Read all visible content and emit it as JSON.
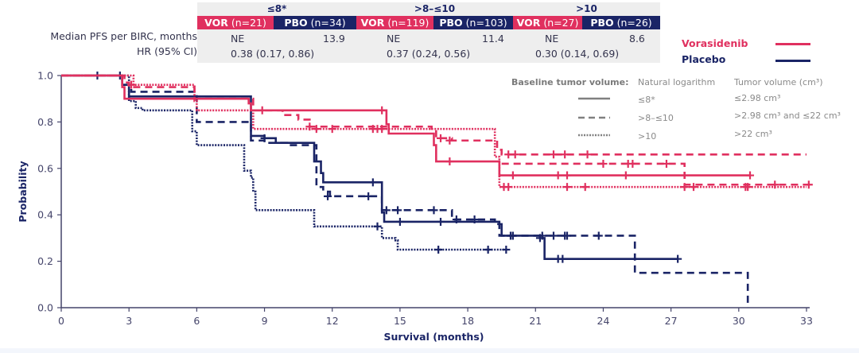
{
  "colors": {
    "vorasidenib": "#e0305f",
    "placebo": "#1a2466",
    "axis": "#44446a"
  },
  "table": {
    "row_labels": [
      "Median PFS per BIRC, months",
      "HR (95% CI)"
    ],
    "groups": [
      {
        "header": "≤8*",
        "vor_label": "VOR",
        "vor_n": "(n=21)",
        "pbo_label": "PBO",
        "pbo_n": "(n=34)",
        "vor_median": "NE",
        "pbo_median": "13.9",
        "hr": "0.38 (0.17, 0.86)"
      },
      {
        "header": ">8–≤10",
        "vor_label": "VOR",
        "vor_n": "(n=119)",
        "pbo_label": "PBO",
        "pbo_n": "(n=103)",
        "vor_median": "NE",
        "pbo_median": "11.4",
        "hr": "0.37 (0.24, 0.56)"
      },
      {
        "header": ">10",
        "vor_label": "VOR",
        "vor_n": "(n=27)",
        "pbo_label": "PBO",
        "pbo_n": "(n=26)",
        "vor_median": "NE",
        "pbo_median": "8.6",
        "hr": "0.30 (0.14, 0.69)"
      }
    ]
  },
  "legend": {
    "vorasidenib": "Vorasidenib",
    "placebo": "Placebo"
  },
  "volume_legend": {
    "title": "Baseline tumor volume:",
    "col1": "Natural logarithm",
    "col2": "Tumor volume (cm³)",
    "rows": [
      {
        "style": "solid",
        "log": "≤8*",
        "volume": "≤2.98 cm³"
      },
      {
        "style": "dashed",
        "log": ">8–≤10",
        "volume": ">2.98 cm³ and ≤22 cm³"
      },
      {
        "style": "dotted",
        "log": ">10",
        "volume": ">22 cm³"
      }
    ]
  },
  "chart_data": {
    "type": "line",
    "subtype": "kaplan-meier step",
    "xlabel": "Survival (months)",
    "ylabel": "Probability",
    "xlim": [
      0,
      33
    ],
    "ylim": [
      0,
      1.0
    ],
    "xticks": [
      "0",
      "3",
      "6",
      "9",
      "12",
      "15",
      "18",
      "21",
      "24",
      "27",
      "30",
      "33"
    ],
    "yticks": [
      "0.0",
      "0.2",
      "0.4",
      "0.6",
      "0.8",
      "1.0"
    ],
    "grid": false,
    "legend_position": "top-right",
    "series": [
      {
        "name": "Vorasidenib ≤8*",
        "arm": "vorasidenib",
        "style": "solid",
        "steps": [
          [
            0,
            1.0
          ],
          [
            2.7,
            0.95
          ],
          [
            2.8,
            0.9
          ],
          [
            5.6,
            0.9
          ],
          [
            8.2,
            0.9
          ],
          [
            8.3,
            0.88
          ],
          [
            8.4,
            0.85
          ],
          [
            14.3,
            0.85
          ],
          [
            14.4,
            0.79
          ],
          [
            14.5,
            0.75
          ],
          [
            16.4,
            0.75
          ],
          [
            16.5,
            0.7
          ],
          [
            16.6,
            0.63
          ],
          [
            19.3,
            0.63
          ],
          [
            19.4,
            0.57
          ],
          [
            27.5,
            0.57
          ],
          [
            30.5,
            0.57
          ]
        ],
        "censors": [
          [
            14.2,
            0.85
          ],
          [
            17.2,
            0.63
          ],
          [
            20.0,
            0.57
          ],
          [
            22.0,
            0.57
          ],
          [
            22.4,
            0.57
          ],
          [
            25.0,
            0.57
          ],
          [
            30.5,
            0.57
          ]
        ]
      },
      {
        "name": "Vorasidenib >8–≤10",
        "arm": "vorasidenib",
        "style": "dashed",
        "steps": [
          [
            0,
            1.0
          ],
          [
            2.8,
            0.97
          ],
          [
            3.0,
            0.95
          ],
          [
            5.8,
            0.95
          ],
          [
            5.9,
            0.9
          ],
          [
            8.3,
            0.9
          ],
          [
            8.5,
            0.85
          ],
          [
            9.3,
            0.85
          ],
          [
            9.8,
            0.83
          ],
          [
            10.5,
            0.81
          ],
          [
            11.0,
            0.78
          ],
          [
            16.4,
            0.76
          ],
          [
            16.6,
            0.73
          ],
          [
            17.3,
            0.72
          ],
          [
            19.3,
            0.68
          ],
          [
            19.5,
            0.66
          ],
          [
            33.0,
            0.66
          ]
        ],
        "censors": [
          [
            3.1,
            0.96
          ],
          [
            8.9,
            0.85
          ],
          [
            11.0,
            0.78
          ],
          [
            11.3,
            0.77
          ],
          [
            12.0,
            0.77
          ],
          [
            16.8,
            0.73
          ],
          [
            17.2,
            0.72
          ],
          [
            19.8,
            0.66
          ],
          [
            20.1,
            0.66
          ],
          [
            21.8,
            0.66
          ],
          [
            22.3,
            0.66
          ],
          [
            23.3,
            0.66
          ],
          [
            24.0,
            0.62
          ],
          [
            25.1,
            0.62
          ],
          [
            25.3,
            0.62
          ],
          [
            26.8,
            0.62
          ],
          [
            31.6,
            0.53
          ],
          [
            33.1,
            0.53
          ]
        ],
        "tail": [
          [
            19.5,
            0.62
          ],
          [
            27.6,
            0.62
          ],
          [
            27.6,
            0.53
          ],
          [
            33.2,
            0.53
          ]
        ]
      },
      {
        "name": "Vorasidenib >10",
        "arm": "vorasidenib",
        "style": "dotted",
        "steps": [
          [
            0,
            1.0
          ],
          [
            3.1,
            1.0
          ],
          [
            3.2,
            0.96
          ],
          [
            5.8,
            0.96
          ],
          [
            5.9,
            0.89
          ],
          [
            6.0,
            0.85
          ],
          [
            8.4,
            0.85
          ],
          [
            8.5,
            0.77
          ],
          [
            14.3,
            0.77
          ],
          [
            14.4,
            0.77
          ],
          [
            19.2,
            0.65
          ],
          [
            19.4,
            0.52
          ],
          [
            33.0,
            0.52
          ]
        ],
        "censors": [
          [
            13.8,
            0.77
          ],
          [
            14.0,
            0.77
          ],
          [
            14.2,
            0.77
          ],
          [
            19.6,
            0.52
          ],
          [
            19.8,
            0.52
          ],
          [
            22.4,
            0.52
          ],
          [
            23.2,
            0.52
          ],
          [
            27.6,
            0.52
          ],
          [
            28.0,
            0.52
          ],
          [
            30.3,
            0.52
          ],
          [
            30.4,
            0.52
          ]
        ]
      },
      {
        "name": "Placebo ≤8*",
        "arm": "placebo",
        "style": "solid",
        "steps": [
          [
            0,
            1.0
          ],
          [
            2.6,
            1.0
          ],
          [
            2.7,
            0.96
          ],
          [
            3.0,
            0.91
          ],
          [
            8.2,
            0.91
          ],
          [
            8.4,
            0.74
          ],
          [
            9.0,
            0.73
          ],
          [
            9.5,
            0.71
          ],
          [
            11.0,
            0.71
          ],
          [
            11.2,
            0.63
          ],
          [
            11.5,
            0.58
          ],
          [
            11.6,
            0.54
          ],
          [
            14.0,
            0.54
          ],
          [
            14.2,
            0.41
          ],
          [
            14.3,
            0.37
          ],
          [
            17.0,
            0.37
          ],
          [
            19.4,
            0.36
          ],
          [
            19.5,
            0.31
          ],
          [
            21.3,
            0.3
          ],
          [
            21.4,
            0.21
          ],
          [
            27.3,
            0.21
          ]
        ],
        "censors": [
          [
            1.6,
            1.0
          ],
          [
            13.8,
            0.54
          ],
          [
            15.0,
            0.37
          ],
          [
            16.8,
            0.37
          ],
          [
            19.9,
            0.31
          ],
          [
            21.2,
            0.3
          ],
          [
            22.0,
            0.21
          ],
          [
            22.2,
            0.21
          ],
          [
            27.3,
            0.21
          ]
        ]
      },
      {
        "name": "Placebo >8–≤10",
        "arm": "placebo",
        "style": "dashed",
        "steps": [
          [
            0,
            1.0
          ],
          [
            2.6,
            1.0
          ],
          [
            2.7,
            0.96
          ],
          [
            3.1,
            0.93
          ],
          [
            5.9,
            0.93
          ],
          [
            6.0,
            0.8
          ],
          [
            8.3,
            0.8
          ],
          [
            8.4,
            0.72
          ],
          [
            9.0,
            0.71
          ],
          [
            10.0,
            0.7
          ],
          [
            11.0,
            0.7
          ],
          [
            11.3,
            0.52
          ],
          [
            11.6,
            0.5
          ],
          [
            11.9,
            0.48
          ],
          [
            14.0,
            0.48
          ],
          [
            14.2,
            0.42
          ],
          [
            16.8,
            0.42
          ],
          [
            17.3,
            0.38
          ],
          [
            19.2,
            0.36
          ],
          [
            19.4,
            0.31
          ],
          [
            25.4,
            0.31
          ],
          [
            25.4,
            0.15
          ],
          [
            30.3,
            0.15
          ],
          [
            30.4,
            0.0
          ]
        ],
        "censors": [
          [
            2.6,
            1.0
          ],
          [
            9.0,
            0.73
          ],
          [
            11.8,
            0.48
          ],
          [
            13.6,
            0.48
          ],
          [
            14.4,
            0.42
          ],
          [
            14.9,
            0.42
          ],
          [
            16.5,
            0.42
          ],
          [
            17.5,
            0.38
          ],
          [
            18.3,
            0.38
          ],
          [
            19.9,
            0.31
          ],
          [
            20.0,
            0.31
          ],
          [
            21.3,
            0.31
          ],
          [
            21.8,
            0.31
          ],
          [
            22.3,
            0.31
          ],
          [
            22.4,
            0.31
          ],
          [
            23.8,
            0.31
          ]
        ]
      },
      {
        "name": "Placebo >10",
        "arm": "placebo",
        "style": "dotted",
        "steps": [
          [
            0,
            1.0
          ],
          [
            2.7,
            1.0
          ],
          [
            3.0,
            0.89
          ],
          [
            3.3,
            0.86
          ],
          [
            3.6,
            0.85
          ],
          [
            5.6,
            0.85
          ],
          [
            5.8,
            0.76
          ],
          [
            6.0,
            0.7
          ],
          [
            8.0,
            0.7
          ],
          [
            8.1,
            0.59
          ],
          [
            8.4,
            0.56
          ],
          [
            8.5,
            0.5
          ],
          [
            8.6,
            0.42
          ],
          [
            11.1,
            0.42
          ],
          [
            11.2,
            0.35
          ],
          [
            14.0,
            0.35
          ],
          [
            14.2,
            0.3
          ],
          [
            14.8,
            0.29
          ],
          [
            14.9,
            0.25
          ],
          [
            19.8,
            0.25
          ]
        ],
        "censors": [
          [
            14.0,
            0.35
          ],
          [
            16.7,
            0.25
          ],
          [
            18.9,
            0.25
          ],
          [
            19.7,
            0.25
          ]
        ]
      }
    ]
  }
}
